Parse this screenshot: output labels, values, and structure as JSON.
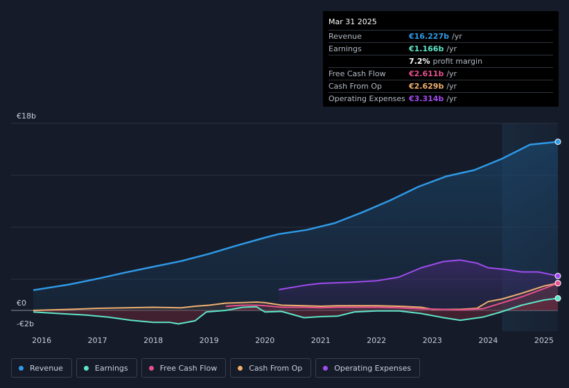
{
  "tooltip": {
    "date": "Mar 31 2025",
    "rows": [
      {
        "label": "Revenue",
        "value": "€16.227b",
        "unit": "/yr",
        "color": "#2f9ae8"
      },
      {
        "label": "Earnings",
        "value": "€1.166b",
        "unit": "/yr",
        "color": "#5ee6c8"
      },
      {
        "label": "",
        "value": "7.2%",
        "unit": "profit margin",
        "color": "#ffffff"
      },
      {
        "label": "Free Cash Flow",
        "value": "€2.611b",
        "unit": "/yr",
        "color": "#e8508c"
      },
      {
        "label": "Cash From Op",
        "value": "€2.629b",
        "unit": "/yr",
        "color": "#f0b070"
      },
      {
        "label": "Operating Expenses",
        "value": "€3.314b",
        "unit": "/yr",
        "color": "#a14cf0"
      }
    ]
  },
  "legend": [
    {
      "label": "Revenue",
      "color": "#2f9ae8"
    },
    {
      "label": "Earnings",
      "color": "#5ee6c8"
    },
    {
      "label": "Free Cash Flow",
      "color": "#e8508c"
    },
    {
      "label": "Cash From Op",
      "color": "#f0b070"
    },
    {
      "label": "Operating Expenses",
      "color": "#a14cf0"
    }
  ],
  "chart_data": {
    "type": "area",
    "title": "",
    "currency": "€",
    "y_labels": [
      "€18b",
      "€0",
      "-€2b"
    ],
    "ylim": [
      -2,
      18
    ],
    "xlim": [
      2015.85,
      2025.25
    ],
    "x_ticks": [
      "2016",
      "2017",
      "2018",
      "2019",
      "2020",
      "2021",
      "2022",
      "2023",
      "2024",
      "2025"
    ],
    "x_tick_values": [
      2016,
      2017,
      2018,
      2019,
      2020,
      2021,
      2022,
      2023,
      2024,
      2025
    ],
    "forecast_start": 2024.25,
    "series": [
      {
        "name": "Revenue",
        "color": "#2f9ae8",
        "x": [
          2015.85,
          2016.5,
          2017,
          2017.5,
          2018,
          2018.5,
          2019,
          2019.5,
          2020,
          2020.25,
          2020.75,
          2021.25,
          2021.75,
          2022.25,
          2022.75,
          2023.25,
          2023.75,
          2024.25,
          2024.75,
          2025.25
        ],
        "values": [
          1.95,
          2.5,
          3.05,
          3.65,
          4.2,
          4.75,
          5.45,
          6.25,
          7.0,
          7.35,
          7.75,
          8.4,
          9.45,
          10.6,
          11.9,
          12.9,
          13.5,
          14.6,
          15.95,
          16.227
        ]
      },
      {
        "name": "Earnings",
        "color": "#5ee6c8",
        "x": [
          2015.85,
          2016.3,
          2016.8,
          2017.2,
          2017.6,
          2018.0,
          2018.3,
          2018.45,
          2018.75,
          2018.95,
          2019.3,
          2019.6,
          2019.85,
          2020.0,
          2020.3,
          2020.7,
          2021.0,
          2021.3,
          2021.6,
          2022.0,
          2022.4,
          2022.8,
          2023.2,
          2023.5,
          2023.9,
          2024.2,
          2024.6,
          2025.0,
          2025.25
        ],
        "values": [
          -0.15,
          -0.3,
          -0.45,
          -0.65,
          -0.95,
          -1.15,
          -1.15,
          -1.3,
          -1.0,
          -0.15,
          0.0,
          0.3,
          0.35,
          -0.15,
          -0.1,
          -0.7,
          -0.6,
          -0.55,
          -0.15,
          -0.05,
          -0.05,
          -0.3,
          -0.7,
          -0.95,
          -0.65,
          -0.2,
          0.5,
          1.0,
          1.166
        ]
      },
      {
        "name": "Free Cash Flow",
        "color": "#e8508c",
        "x": [
          2019.3,
          2019.6,
          2019.85,
          2020.0,
          2020.3,
          2020.7,
          2021.0,
          2021.3,
          2021.6,
          2022.0,
          2022.4,
          2022.8,
          2023.2,
          2023.5,
          2023.9,
          2024.2,
          2024.6,
          2025.0,
          2025.25
        ],
        "values": [
          0.4,
          0.5,
          0.5,
          0.45,
          0.3,
          0.3,
          0.25,
          0.3,
          0.3,
          0.3,
          0.25,
          0.15,
          0.1,
          0.05,
          0.15,
          0.65,
          1.3,
          2.1,
          2.611
        ]
      },
      {
        "name": "Cash From Op",
        "color": "#f0b070",
        "x": [
          2015.85,
          2016.5,
          2017,
          2017.5,
          2018,
          2018.5,
          2018.75,
          2019.0,
          2019.3,
          2019.6,
          2019.85,
          2020.0,
          2020.3,
          2020.7,
          2021.0,
          2021.3,
          2021.6,
          2022.0,
          2022.4,
          2022.8,
          2023.0,
          2023.5,
          2023.8,
          2024.0,
          2024.25,
          2024.6,
          2025.0,
          2025.25
        ],
        "values": [
          0.0,
          0.1,
          0.2,
          0.25,
          0.3,
          0.25,
          0.4,
          0.5,
          0.7,
          0.75,
          0.8,
          0.75,
          0.5,
          0.45,
          0.4,
          0.45,
          0.45,
          0.45,
          0.4,
          0.3,
          0.1,
          0.1,
          0.2,
          0.85,
          1.1,
          1.65,
          2.35,
          2.629
        ]
      },
      {
        "name": "Operating Expenses",
        "color": "#a14cf0",
        "x": [
          2020.25,
          2020.75,
          2021.0,
          2021.5,
          2022.0,
          2022.4,
          2022.8,
          2023.2,
          2023.5,
          2023.8,
          2024.0,
          2024.3,
          2024.6,
          2024.9,
          2025.25
        ],
        "values": [
          2.0,
          2.45,
          2.6,
          2.7,
          2.85,
          3.2,
          4.1,
          4.7,
          4.85,
          4.55,
          4.1,
          3.95,
          3.7,
          3.7,
          3.314
        ]
      }
    ]
  }
}
